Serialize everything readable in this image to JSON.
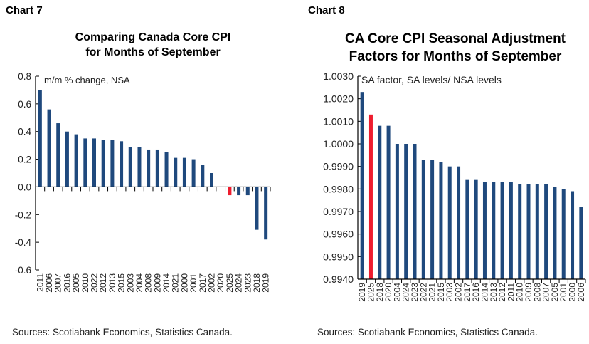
{
  "chart_data": [
    {
      "type": "bar",
      "label": "Chart 7",
      "title_lines": [
        "Comparing Canada Core CPI",
        "for Months of September"
      ],
      "annotation": "m/m % change, NSA",
      "source": "Sources: Scotiabank Economics, Statistics Canada.",
      "ylim": [
        -0.6,
        0.8
      ],
      "yticks": [
        "0.8",
        "0.6",
        "0.4",
        "0.2",
        "0.0",
        "-0.2",
        "-0.4",
        "-0.6"
      ],
      "categories": [
        "2011",
        "2006",
        "2007",
        "2016",
        "2005",
        "2010",
        "2022",
        "2012",
        "2013",
        "2015",
        "2003",
        "2004",
        "2008",
        "2009",
        "2014",
        "2021",
        "2000",
        "2001",
        "2017",
        "2002",
        "2020",
        "2025",
        "2024",
        "2023",
        "2018",
        "2019"
      ],
      "values": [
        0.7,
        0.56,
        0.46,
        0.4,
        0.38,
        0.35,
        0.35,
        0.34,
        0.34,
        0.33,
        0.29,
        0.29,
        0.27,
        0.27,
        0.25,
        0.21,
        0.21,
        0.2,
        0.16,
        0.1,
        0.0,
        -0.06,
        -0.06,
        -0.06,
        -0.31,
        -0.38
      ],
      "highlight": "2025",
      "colors": {
        "bar": "#1f497d",
        "highlight": "#ee1c2e"
      }
    },
    {
      "type": "bar",
      "label": "Chart 8",
      "title_lines": [
        "CA Core CPI Seasonal Adjustment",
        "Factors for Months of September"
      ],
      "annotation": "SA factor, SA levels/ NSA levels",
      "source": "Sources: Scotiabank Economics, Statistics Canada.",
      "ylim": [
        0.994,
        1.003
      ],
      "yticks": [
        "1.0030",
        "1.0020",
        "1.0010",
        "1.0000",
        "0.9990",
        "0.9980",
        "0.9970",
        "0.9960",
        "0.9950",
        "0.9940"
      ],
      "categories": [
        "2019",
        "2025",
        "2018",
        "2020",
        "2004",
        "2024",
        "2023",
        "2022",
        "2021",
        "2015",
        "2003",
        "2002",
        "2017",
        "2016",
        "2014",
        "2013",
        "2012",
        "2011",
        "2010",
        "2009",
        "2008",
        "2007",
        "2005",
        "2001",
        "2000",
        "2006"
      ],
      "values": [
        1.0023,
        1.0013,
        1.0008,
        1.0008,
        1.0,
        1.0,
        1.0,
        0.9993,
        0.9993,
        0.9992,
        0.999,
        0.999,
        0.9984,
        0.9984,
        0.9983,
        0.9983,
        0.9983,
        0.9983,
        0.9982,
        0.9982,
        0.9982,
        0.9982,
        0.9981,
        0.998,
        0.9979,
        0.9972
      ],
      "highlight": "2025",
      "colors": {
        "bar": "#1f497d",
        "highlight": "#ee1c2e"
      }
    }
  ]
}
